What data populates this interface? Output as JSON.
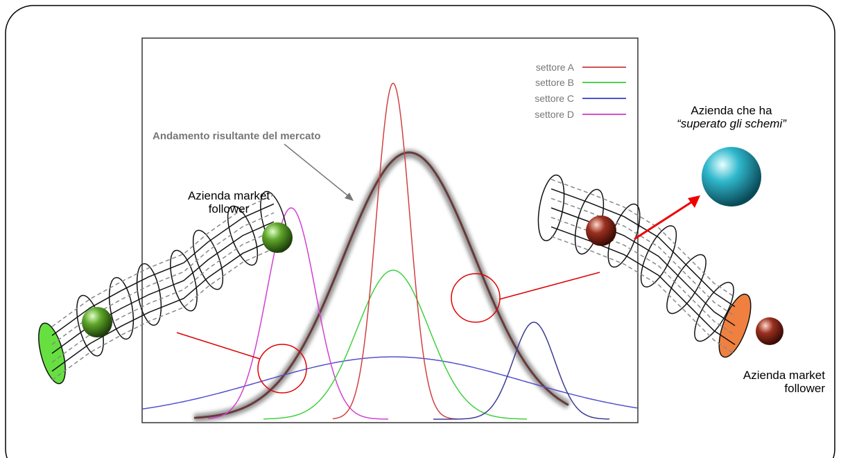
{
  "legend": [
    {
      "label": "settore A"
    },
    {
      "label": "settore B"
    },
    {
      "label": "settore C"
    },
    {
      "label": "settore D"
    }
  ],
  "annotations": {
    "market_curve": "Andamento risultante del mercato",
    "follower_left": "Azienda market follower",
    "follower_right": "Azienda market follower",
    "leader_line1": "Azienda che ha",
    "leader_line2": "“superato gli schemi”"
  }
}
